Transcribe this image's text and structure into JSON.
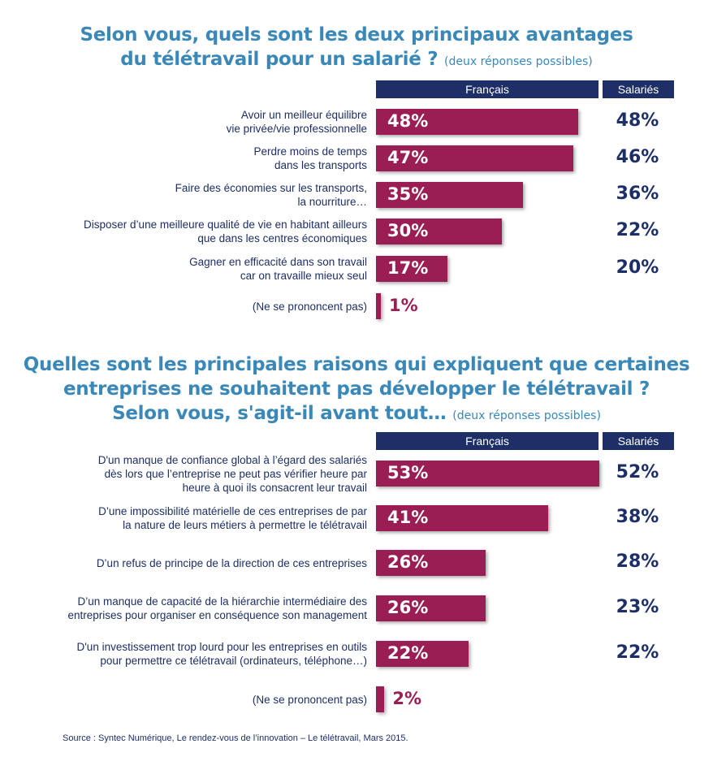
{
  "chart_data": [
    {
      "type": "bar",
      "title_line1": "Selon vous, quels sont les deux principaux avantages",
      "title_line2": "du télétravail pour un salarié ?",
      "title_note": "(deux réponses possibles)",
      "header_francais": "Français",
      "header_salaries": "Salariés",
      "categories": [
        [
          "Avoir un meilleur équilibre",
          "vie privée/vie professionnelle"
        ],
        [
          "Perdre moins de temps",
          "dans les transports"
        ],
        [
          "Faire des économies sur les transports,",
          "la nourriture…"
        ],
        [
          "Disposer d’une meilleure qualité de vie en habitant ailleurs",
          "que dans les centres économiques"
        ],
        [
          "Gagner en efficacité dans son travail",
          "car on travaille mieux seul"
        ],
        [
          "(Ne se prononcent pas)"
        ]
      ],
      "series": [
        {
          "name": "Français",
          "values": [
            48,
            47,
            35,
            30,
            17,
            1
          ]
        },
        {
          "name": "Salariés",
          "values": [
            48,
            46,
            36,
            22,
            20,
            null
          ]
        }
      ]
    },
    {
      "type": "bar",
      "title_line1": "Quelles sont les principales raisons qui expliquent que certaines",
      "title_line2": "entreprises ne souhaitent pas développer le télétravail ?",
      "title_line3": "Selon vous, s'agit-il avant tout…",
      "title_note": "(deux réponses possibles)",
      "header_francais": "Français",
      "header_salaries": "Salariés",
      "categories": [
        [
          "D'un manque de confiance global à l’égard des salariés",
          "dès lors que l’entreprise ne peut pas vérifier heure par",
          "heure à quoi ils consacrent leur travail"
        ],
        [
          "D’une impossibilité matérielle de ces entreprises de par",
          "la nature de leurs métiers à permettre le télétravail"
        ],
        [
          "D’un refus de principe de la direction de ces entreprises"
        ],
        [
          "D’un manque de capacité de la hiérarchie intermédiaire des",
          "entreprises pour organiser en conséquence son management"
        ],
        [
          "D'un investissement trop lourd pour les entreprises en outils",
          "pour permettre ce télétravail (ordinateurs, téléphone…)"
        ],
        [
          "(Ne se prononcent pas)"
        ]
      ],
      "series": [
        {
          "name": "Français",
          "values": [
            53,
            41,
            26,
            26,
            22,
            2
          ]
        },
        {
          "name": "Salariés",
          "values": [
            52,
            38,
            28,
            23,
            22,
            null
          ]
        }
      ]
    }
  ],
  "source": "Source : Syntec Numérique, Le rendez-vous de l’innovation – Le télétravail, Mars 2015."
}
